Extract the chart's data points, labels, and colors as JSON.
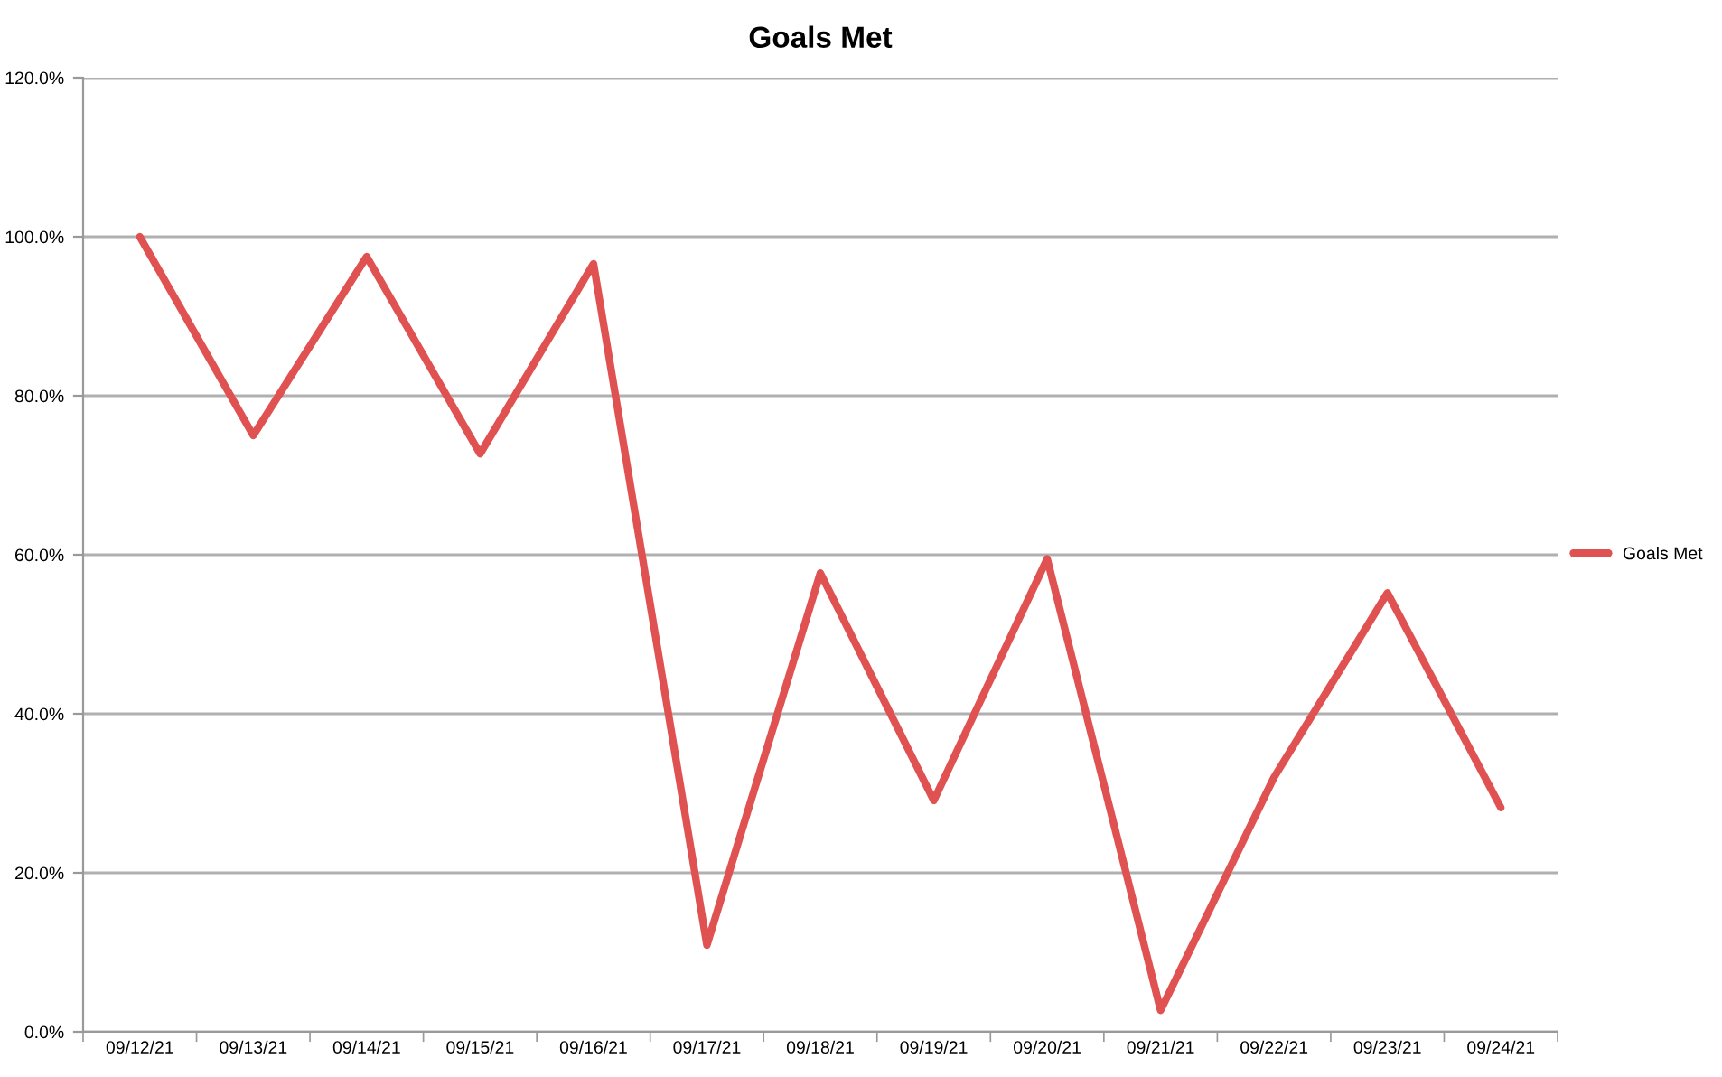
{
  "chart_data": {
    "type": "line",
    "title": "Goals Met",
    "categories": [
      "09/12/21",
      "09/13/21",
      "09/14/21",
      "09/15/21",
      "09/16/21",
      "09/17/21",
      "09/18/21",
      "09/19/21",
      "09/20/21",
      "09/21/21",
      "09/22/21",
      "09/23/21",
      "09/24/21"
    ],
    "series": [
      {
        "name": "Goals Met",
        "color": "#e05252",
        "values": [
          100,
          75,
          97.5,
          72.7,
          96.6,
          10.9,
          57.7,
          29.1,
          59.5,
          2.7,
          32,
          55.2,
          28.2
        ]
      }
    ],
    "ylim": [
      0,
      120
    ],
    "yticks": [
      {
        "value": 0,
        "label": "0.0%"
      },
      {
        "value": 20,
        "label": "20.0%"
      },
      {
        "value": 40,
        "label": "40.0%"
      },
      {
        "value": 60,
        "label": "60.0%"
      },
      {
        "value": 80,
        "label": "80.0%"
      },
      {
        "value": 100,
        "label": "100.0%"
      },
      {
        "value": 120,
        "label": "120.0%"
      }
    ],
    "grid": "y",
    "legend": "right",
    "marker": "none",
    "line_style": "solid"
  }
}
